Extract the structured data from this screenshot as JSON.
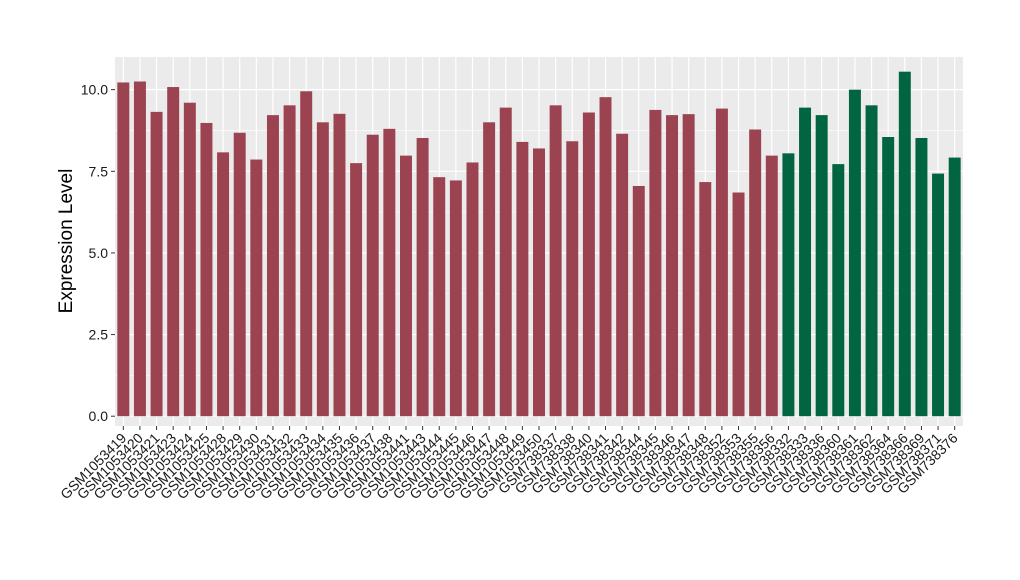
{
  "chart_data": {
    "type": "bar",
    "ylabel": "Expression Level",
    "xlabel": "",
    "ylim": [
      -0.3,
      11.0
    ],
    "yticks": [
      0.0,
      2.5,
      5.0,
      7.5,
      10.0
    ],
    "ytick_labels": [
      "0.0",
      "2.5",
      "5.0",
      "7.5",
      "10.0"
    ],
    "grid": true,
    "colors": {
      "group_a": "#9b4350",
      "group_b": "#006540",
      "panel": "#ebebeb",
      "grid": "#ffffff"
    },
    "categories": [
      "GSM1053419",
      "GSM1053420",
      "GSM1053421",
      "GSM1053423",
      "GSM1053424",
      "GSM1053425",
      "GSM1053428",
      "GSM1053429",
      "GSM1053430",
      "GSM1053431",
      "GSM1053432",
      "GSM1053433",
      "GSM1053434",
      "GSM1053435",
      "GSM1053436",
      "GSM1053437",
      "GSM1053438",
      "GSM1053441",
      "GSM1053443",
      "GSM1053444",
      "GSM1053445",
      "GSM1053446",
      "GSM1053447",
      "GSM1053448",
      "GSM1053449",
      "GSM1053450",
      "GSM738337",
      "GSM738338",
      "GSM738340",
      "GSM738341",
      "GSM738342",
      "GSM738344",
      "GSM738345",
      "GSM738346",
      "GSM738347",
      "GSM738348",
      "GSM738352",
      "GSM738353",
      "GSM738355",
      "GSM738356",
      "GSM738332",
      "GSM738333",
      "GSM738336",
      "GSM738360",
      "GSM738361",
      "GSM738362",
      "GSM738364",
      "GSM738366",
      "GSM738369",
      "GSM738371",
      "GSM738376"
    ],
    "values": [
      10.22,
      10.25,
      9.32,
      10.08,
      9.6,
      8.98,
      8.08,
      8.68,
      7.86,
      9.22,
      9.52,
      9.95,
      9.0,
      9.26,
      7.75,
      8.62,
      8.8,
      7.98,
      8.52,
      7.32,
      7.22,
      7.77,
      9.0,
      9.45,
      8.4,
      8.2,
      9.52,
      8.42,
      9.3,
      9.77,
      8.65,
      7.05,
      9.38,
      9.22,
      9.25,
      7.17,
      9.42,
      6.85,
      8.78,
      7.98,
      8.05,
      9.45,
      9.22,
      7.72,
      10.0,
      9.52,
      8.55,
      10.55,
      8.52,
      7.43,
      7.92
    ],
    "groups": [
      "a",
      "a",
      "a",
      "a",
      "a",
      "a",
      "a",
      "a",
      "a",
      "a",
      "a",
      "a",
      "a",
      "a",
      "a",
      "a",
      "a",
      "a",
      "a",
      "a",
      "a",
      "a",
      "a",
      "a",
      "a",
      "a",
      "a",
      "a",
      "a",
      "a",
      "a",
      "a",
      "a",
      "a",
      "a",
      "a",
      "a",
      "a",
      "a",
      "a",
      "b",
      "b",
      "b",
      "b",
      "b",
      "b",
      "b",
      "b",
      "b",
      "b",
      "b"
    ]
  }
}
